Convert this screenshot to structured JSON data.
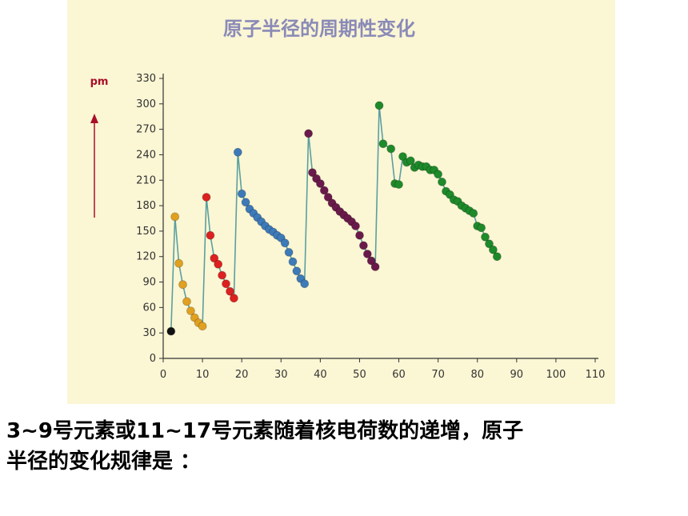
{
  "chart_data": {
    "type": "line",
    "title": "原子半径的周期性变化",
    "ylabel": "pm",
    "xlabel": "",
    "xlim": [
      0,
      110
    ],
    "ylim": [
      0,
      330
    ],
    "x_ticks": [
      0,
      10,
      20,
      30,
      40,
      50,
      60,
      70,
      80,
      90,
      100,
      110
    ],
    "y_ticks": [
      0,
      30,
      60,
      90,
      120,
      150,
      180,
      210,
      240,
      270,
      300,
      330
    ],
    "grid": false,
    "line_color": "#5aa0a0",
    "series": [
      {
        "color": "#111111",
        "points": [
          [
            2,
            32
          ]
        ]
      },
      {
        "color": "#e0a020",
        "points": [
          [
            3,
            167
          ],
          [
            4,
            112
          ],
          [
            5,
            87
          ],
          [
            6,
            67
          ],
          [
            7,
            56
          ],
          [
            8,
            48
          ],
          [
            9,
            42
          ],
          [
            10,
            38
          ]
        ]
      },
      {
        "color": "#dd2020",
        "points": [
          [
            11,
            190
          ],
          [
            12,
            145
          ],
          [
            13,
            118
          ],
          [
            14,
            111
          ],
          [
            15,
            98
          ],
          [
            16,
            88
          ],
          [
            17,
            79
          ],
          [
            18,
            71
          ]
        ]
      },
      {
        "color": "#3d7ab8",
        "points": [
          [
            19,
            243
          ],
          [
            20,
            194
          ],
          [
            21,
            184
          ],
          [
            22,
            176
          ],
          [
            23,
            171
          ],
          [
            24,
            166
          ],
          [
            25,
            161
          ],
          [
            26,
            156
          ],
          [
            27,
            152
          ],
          [
            28,
            149
          ],
          [
            29,
            145
          ],
          [
            30,
            142
          ],
          [
            31,
            136
          ],
          [
            32,
            125
          ],
          [
            33,
            114
          ],
          [
            34,
            103
          ],
          [
            35,
            94
          ],
          [
            36,
            88
          ]
        ]
      },
      {
        "color": "#6a1a4a",
        "points": [
          [
            37,
            265
          ],
          [
            38,
            219
          ],
          [
            39,
            212
          ],
          [
            40,
            206
          ],
          [
            41,
            198
          ],
          [
            42,
            190
          ],
          [
            43,
            183
          ],
          [
            44,
            178
          ],
          [
            45,
            173
          ],
          [
            46,
            169
          ],
          [
            47,
            165
          ],
          [
            48,
            161
          ],
          [
            49,
            156
          ],
          [
            50,
            145
          ],
          [
            51,
            133
          ],
          [
            52,
            123
          ],
          [
            53,
            115
          ],
          [
            54,
            108
          ]
        ]
      },
      {
        "color": "#1e8a2a",
        "points": [
          [
            55,
            298
          ],
          [
            56,
            253
          ],
          [
            58,
            247
          ],
          [
            59,
            206
          ],
          [
            60,
            205
          ],
          [
            61,
            238
          ],
          [
            62,
            231
          ],
          [
            63,
            233
          ],
          [
            64,
            225
          ],
          [
            65,
            228
          ],
          [
            66,
            226
          ],
          [
            67,
            226
          ],
          [
            68,
            222
          ],
          [
            69,
            222
          ],
          [
            70,
            217
          ],
          [
            71,
            208
          ],
          [
            72,
            197
          ],
          [
            73,
            193
          ],
          [
            74,
            187
          ],
          [
            75,
            185
          ],
          [
            76,
            180
          ],
          [
            77,
            177
          ],
          [
            78,
            174
          ],
          [
            79,
            171
          ],
          [
            80,
            156
          ],
          [
            81,
            154
          ],
          [
            82,
            143
          ],
          [
            83,
            135
          ],
          [
            84,
            128
          ],
          [
            85,
            120
          ]
        ]
      }
    ]
  },
  "caption": {
    "line1": "3~9号元素或11~17号元素随着核电荷数的递增，原子",
    "line2": "半径的变化规律是 ："
  }
}
